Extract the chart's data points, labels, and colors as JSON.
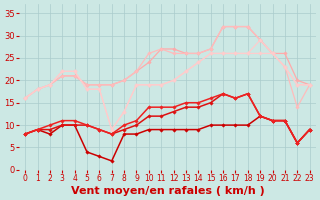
{
  "background_color": "#cce8e4",
  "grid_color": "#aacccc",
  "xlabel": "Vent moyen/en rafales ( km/h )",
  "xlabel_color": "#cc0000",
  "xlabel_fontsize": 8,
  "xtick_color": "#cc0000",
  "ytick_color": "#cc0000",
  "xlim": [
    -0.5,
    23.5
  ],
  "ylim": [
    0,
    37
  ],
  "yticks": [
    0,
    5,
    10,
    15,
    20,
    25,
    30,
    35
  ],
  "xticks": [
    0,
    1,
    2,
    3,
    4,
    5,
    6,
    7,
    8,
    9,
    10,
    11,
    12,
    13,
    14,
    15,
    16,
    17,
    18,
    19,
    20,
    21,
    22,
    23
  ],
  "series": [
    {
      "color": "#ffaaaa",
      "linewidth": 0.9,
      "marker": "D",
      "markersize": 1.8,
      "y": [
        16,
        18,
        19,
        21,
        21,
        19,
        19,
        19,
        20,
        22,
        24,
        27,
        27,
        26,
        26,
        27,
        32,
        32,
        32,
        29,
        26,
        26,
        20,
        19
      ]
    },
    {
      "color": "#ffbbbb",
      "linewidth": 0.9,
      "marker": "D",
      "markersize": 1.8,
      "y": [
        16,
        18,
        19,
        21,
        21,
        19,
        19,
        19,
        20,
        22,
        26,
        27,
        26,
        26,
        26,
        27,
        32,
        32,
        32,
        29,
        26,
        23,
        14,
        19
      ]
    },
    {
      "color": "#ffcccc",
      "linewidth": 0.9,
      "marker": "D",
      "markersize": 1.8,
      "y": [
        16,
        18,
        19,
        22,
        22,
        18,
        18,
        9,
        13,
        19,
        19,
        19,
        20,
        22,
        24,
        26,
        26,
        26,
        26,
        26,
        26,
        23,
        19,
        19
      ]
    },
    {
      "color": "#ffcccc",
      "linewidth": 0.9,
      "marker": "D",
      "markersize": 1.8,
      "y": [
        16,
        18,
        19,
        22,
        22,
        18,
        18,
        9,
        13,
        19,
        19,
        19,
        20,
        22,
        24,
        26,
        26,
        26,
        26,
        29,
        26,
        23,
        19,
        19
      ]
    },
    {
      "color": "#cc0000",
      "linewidth": 1.1,
      "marker": "D",
      "markersize": 1.8,
      "y": [
        8,
        9,
        8,
        10,
        10,
        4,
        3,
        2,
        8,
        8,
        9,
        9,
        9,
        9,
        9,
        10,
        10,
        10,
        10,
        12,
        11,
        11,
        6,
        9
      ]
    },
    {
      "color": "#dd1111",
      "linewidth": 1.1,
      "marker": "D",
      "markersize": 1.8,
      "y": [
        8,
        9,
        9,
        10,
        10,
        10,
        9,
        8,
        9,
        10,
        12,
        12,
        13,
        14,
        14,
        15,
        17,
        16,
        17,
        12,
        11,
        11,
        6,
        9
      ]
    },
    {
      "color": "#ee2222",
      "linewidth": 1.1,
      "marker": "D",
      "markersize": 1.8,
      "y": [
        8,
        9,
        10,
        11,
        11,
        10,
        9,
        8,
        10,
        11,
        14,
        14,
        14,
        15,
        15,
        16,
        17,
        16,
        17,
        12,
        11,
        11,
        6,
        9
      ]
    }
  ]
}
